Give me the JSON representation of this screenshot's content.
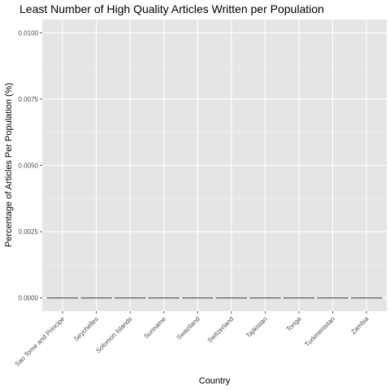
{
  "colors": {
    "panel": "#e5e5e5",
    "grid_major": "#ffffff",
    "grid_minor": "#f0f0f0",
    "bar_outline": "#555555",
    "tick": "#333333"
  },
  "chart_data": {
    "type": "bar",
    "title": "Least Number of High Quality Articles Written per Population",
    "xlabel": "Country",
    "ylabel": "Percentage of Articles Per Population (%)",
    "categories": [
      "Sao Tome and Principe",
      "Seychelles",
      "Solomon Islands",
      "Suriname",
      "Swaziland",
      "Switzerland",
      "Tajikistan",
      "Tonga",
      "Turkmenistan",
      "Zambia"
    ],
    "values": [
      0,
      0,
      0,
      0,
      0,
      0,
      0,
      0,
      0,
      0
    ],
    "ylim": [
      0,
      0.01
    ],
    "yticks": [
      0,
      0.0025,
      0.005,
      0.0075,
      0.01
    ],
    "ytick_labels": [
      "0.0000",
      "0.0025",
      "0.0050",
      "0.0075",
      "0.0100"
    ],
    "grid": true,
    "legend": "none"
  }
}
